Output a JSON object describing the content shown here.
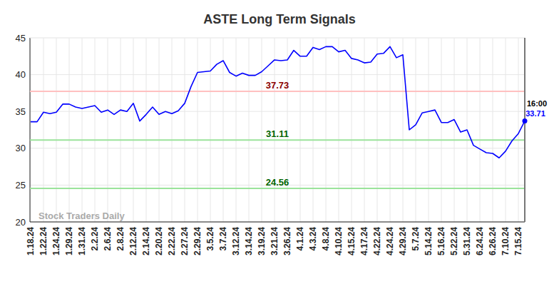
{
  "chart_data": {
    "type": "line",
    "title": "ASTE Long Term Signals",
    "watermark": "Stock Traders Daily",
    "last_label": "16:00",
    "color": "#0000ff",
    "grid": true,
    "ylim": [
      20,
      45
    ],
    "yticks": [
      20,
      25,
      30,
      35,
      40,
      45
    ],
    "annotations": [
      {
        "y": 37.73,
        "color": "#ffc0c0",
        "label_color": "#8b0000"
      },
      {
        "y": 31.11,
        "color": "#9be39b",
        "label_color": "#006400"
      },
      {
        "y": 24.56,
        "color": "#9be39b",
        "label_color": "#006400"
      }
    ],
    "categories": [
      "1.18.24",
      null,
      "1.22.24",
      null,
      "1.24.24",
      null,
      "1.29.24",
      null,
      "1.31.24",
      null,
      "2.2.24",
      null,
      "2.6.24",
      null,
      "2.8.24",
      null,
      "2.12.24",
      null,
      "2.14.24",
      null,
      "2.20.24",
      null,
      "2.22.24",
      null,
      "2.27.24",
      null,
      "2.29.24",
      null,
      "3.5.24",
      null,
      "3.7.24",
      null,
      "3.12.24",
      null,
      "3.14.24",
      null,
      "3.19.24",
      null,
      "3.21.24",
      null,
      "3.26.24",
      null,
      "4.1.24",
      null,
      "4.3.24",
      null,
      "4.8.24",
      null,
      "4.10.24",
      null,
      "4.15.24",
      null,
      "4.17.24",
      null,
      "4.22.24",
      null,
      "4.24.24",
      null,
      "4.29.24",
      null,
      "5.7.24",
      null,
      "5.14.24",
      null,
      "5.16.24",
      null,
      "5.22.24",
      null,
      "5.31.24",
      null,
      "6.24.24",
      null,
      "6.26.24",
      null,
      "7.10.24",
      null,
      "7.15.24",
      null
    ],
    "values": [
      33.6,
      33.6,
      34.9,
      34.7,
      34.9,
      36.0,
      36.0,
      35.6,
      35.4,
      35.6,
      35.8,
      34.9,
      35.2,
      34.6,
      35.2,
      35.0,
      36.1,
      33.7,
      34.6,
      35.6,
      34.6,
      35.0,
      34.7,
      35.1,
      36.1,
      38.4,
      40.3,
      40.4,
      40.5,
      41.4,
      41.9,
      40.3,
      39.8,
      40.2,
      39.9,
      39.9,
      40.4,
      41.2,
      42.0,
      41.9,
      42.0,
      43.3,
      42.5,
      42.5,
      43.7,
      43.4,
      43.8,
      43.8,
      43.1,
      43.3,
      42.2,
      42.0,
      41.6,
      41.7,
      42.8,
      42.9,
      43.8,
      42.3,
      42.7,
      32.5,
      33.2,
      34.8,
      35.0,
      35.2,
      33.5,
      33.5,
      33.9,
      32.2,
      32.5,
      30.4,
      29.9,
      29.4,
      29.3,
      28.7,
      29.6,
      31.0,
      32.0,
      33.71
    ]
  }
}
